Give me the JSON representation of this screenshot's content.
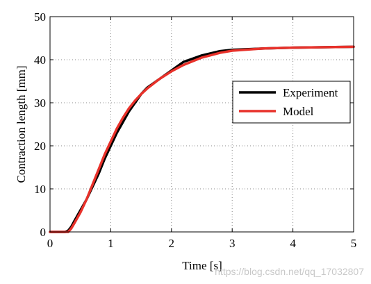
{
  "chart_data": {
    "type": "line",
    "title": "",
    "xlabel": "Time [s]",
    "ylabel": "Contraction length [mm]",
    "xlim": [
      0,
      5
    ],
    "ylim": [
      0,
      50
    ],
    "xticks": [
      0,
      1,
      2,
      3,
      4,
      5
    ],
    "yticks": [
      0,
      10,
      20,
      30,
      40,
      50
    ],
    "grid": true,
    "legend_position": "center-right",
    "series": [
      {
        "name": "Experiment",
        "color": "#000000",
        "x": [
          0,
          0.25,
          0.3,
          0.35,
          0.4,
          0.5,
          0.6,
          0.7,
          0.8,
          0.9,
          1.0,
          1.1,
          1.2,
          1.3,
          1.4,
          1.5,
          1.6,
          1.8,
          2.0,
          2.2,
          2.5,
          2.8,
          3.0,
          3.5,
          4.0,
          4.5,
          5.0
        ],
        "y": [
          0,
          0,
          0.3,
          1.2,
          2.5,
          5.0,
          7.5,
          10.5,
          13.5,
          17.0,
          20.0,
          23.0,
          25.5,
          28.0,
          30.0,
          32.0,
          33.5,
          35.5,
          37.5,
          39.5,
          41.0,
          42.0,
          42.3,
          42.6,
          42.8,
          42.9,
          43.0
        ]
      },
      {
        "name": "Model",
        "color": "#e8312a",
        "x": [
          0,
          0.3,
          0.35,
          0.4,
          0.5,
          0.6,
          0.7,
          0.8,
          0.9,
          1.0,
          1.1,
          1.2,
          1.3,
          1.4,
          1.5,
          1.6,
          1.8,
          2.0,
          2.2,
          2.5,
          2.8,
          3.0,
          3.5,
          4.0,
          4.5,
          5.0
        ],
        "y": [
          0,
          0,
          0.8,
          2.0,
          4.5,
          7.5,
          11.0,
          14.5,
          18.0,
          21.0,
          24.0,
          26.5,
          28.7,
          30.5,
          32.0,
          33.3,
          35.5,
          37.3,
          38.8,
          40.5,
          41.6,
          42.1,
          42.6,
          42.8,
          42.9,
          43.0
        ]
      }
    ]
  },
  "watermark": "https://blog.csdn.net/qq_17032807"
}
